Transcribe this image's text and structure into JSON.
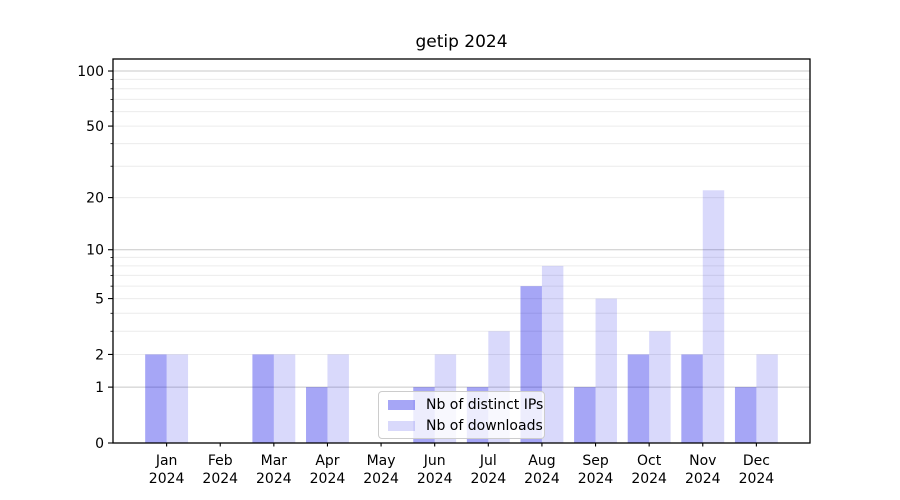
{
  "chart_data": {
    "type": "bar",
    "title": "getip 2024",
    "categories": [
      "Jan",
      "Feb",
      "Mar",
      "Apr",
      "May",
      "Jun",
      "Jul",
      "Aug",
      "Sep",
      "Oct",
      "Nov",
      "Dec"
    ],
    "category_year": "2024",
    "series": [
      {
        "name": "Nb of distinct IPs",
        "key": "distinct-ips",
        "color": "rgba(0,0,230,0.35)",
        "solid_color": "#a6a6f6",
        "values": [
          2,
          0,
          2,
          1,
          0,
          1,
          1,
          6,
          1,
          2,
          2,
          1
        ]
      },
      {
        "name": "Nb of downloads",
        "key": "downloads",
        "color": "rgba(0,0,230,0.15)",
        "solid_color": "#d9d9fb",
        "values": [
          2,
          0,
          2,
          2,
          0,
          2,
          3,
          8,
          5,
          3,
          22,
          2
        ]
      }
    ],
    "y_axis": {
      "scale": "log1p",
      "range": [
        0,
        116
      ],
      "tick_values": [
        0,
        1,
        2,
        5,
        10,
        20,
        50,
        100
      ],
      "tick_labels": [
        "0",
        "1",
        "2",
        "5",
        "10",
        "20",
        "50",
        "100"
      ],
      "major_gridlines": [
        1,
        10,
        100
      ],
      "minor_gridlines": [
        2,
        3,
        4,
        5,
        6,
        7,
        8,
        9,
        20,
        30,
        40,
        50,
        60,
        70,
        80,
        90
      ]
    },
    "legend": {
      "location": "lower center"
    },
    "colors": {
      "major_grid": "#c8c8c8",
      "minor_grid": "#ececec",
      "axis": "#000000",
      "text": "#000000"
    }
  }
}
